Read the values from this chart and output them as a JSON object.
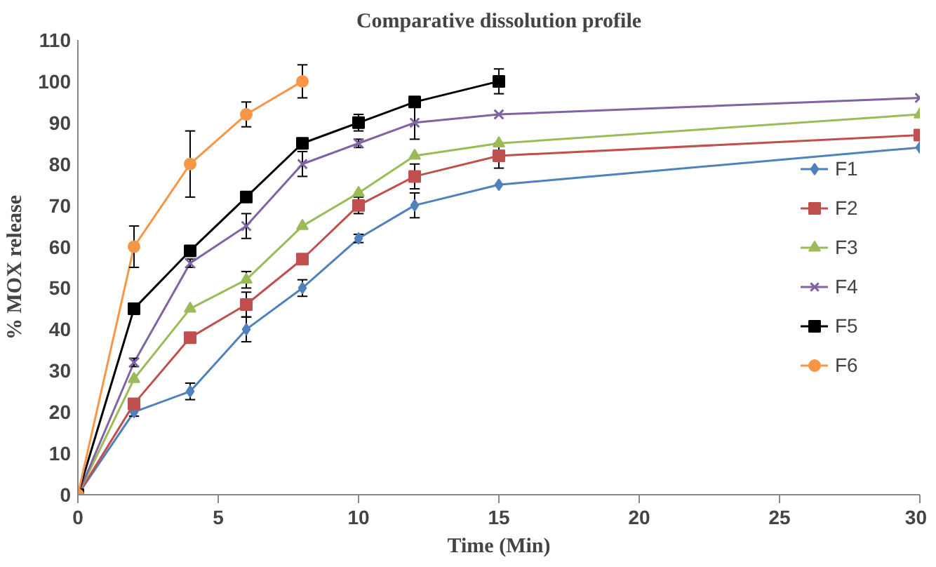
{
  "chart_data": {
    "type": "line",
    "title": "Comparative dissolution profile",
    "xlabel": "Time (Min)",
    "ylabel": "% MOX release",
    "xlim": [
      0,
      30
    ],
    "xticks": [
      0,
      5,
      10,
      15,
      20,
      25,
      30
    ],
    "ylim": [
      0,
      110
    ],
    "yticks": [
      0,
      10,
      20,
      30,
      40,
      50,
      60,
      70,
      80,
      90,
      100,
      110
    ],
    "grid": false,
    "legend": "right",
    "line_style": "solid",
    "series": [
      {
        "name": "F1",
        "color": "#4f81bd",
        "marker": "diamond",
        "x": [
          0,
          2,
          4,
          6,
          8,
          10,
          12,
          15,
          30
        ],
        "values": [
          0,
          20,
          25,
          40,
          50,
          62,
          70,
          75,
          84
        ],
        "errors": [
          null,
          1,
          2,
          3,
          2,
          1,
          3,
          null,
          null
        ]
      },
      {
        "name": "F2",
        "color": "#c0504d",
        "marker": "square",
        "x": [
          0,
          2,
          4,
          6,
          8,
          10,
          12,
          15,
          30
        ],
        "values": [
          0,
          22,
          38,
          46,
          57,
          70,
          77,
          82,
          87
        ],
        "errors": [
          null,
          1,
          null,
          3,
          null,
          2,
          3,
          3,
          null
        ]
      },
      {
        "name": "F3",
        "color": "#9bbb59",
        "marker": "triangle",
        "x": [
          0,
          2,
          4,
          6,
          8,
          10,
          12,
          15,
          30
        ],
        "values": [
          0,
          28,
          45,
          52,
          65,
          73,
          82,
          85,
          92
        ],
        "errors": [
          null,
          null,
          null,
          2,
          null,
          null,
          null,
          null,
          null
        ]
      },
      {
        "name": "F4",
        "color": "#8064a2",
        "marker": "cross",
        "x": [
          0,
          2,
          4,
          6,
          8,
          10,
          12,
          15,
          30
        ],
        "values": [
          0,
          32,
          56,
          65,
          80,
          85,
          90,
          92,
          96
        ],
        "errors": [
          null,
          1,
          1,
          3,
          3,
          1,
          4,
          null,
          null
        ]
      },
      {
        "name": "F5",
        "color": "#000000",
        "marker": "square",
        "x": [
          0,
          2,
          4,
          6,
          8,
          10,
          12,
          15
        ],
        "values": [
          0,
          45,
          59,
          72,
          85,
          90,
          95,
          100
        ],
        "errors": [
          null,
          null,
          null,
          null,
          null,
          2,
          1,
          3
        ]
      },
      {
        "name": "F6",
        "color": "#f79646",
        "marker": "circle",
        "x": [
          0,
          2,
          4,
          6,
          8
        ],
        "values": [
          0,
          60,
          80,
          92,
          100
        ],
        "errors": [
          null,
          5,
          8,
          3,
          4
        ]
      }
    ]
  }
}
